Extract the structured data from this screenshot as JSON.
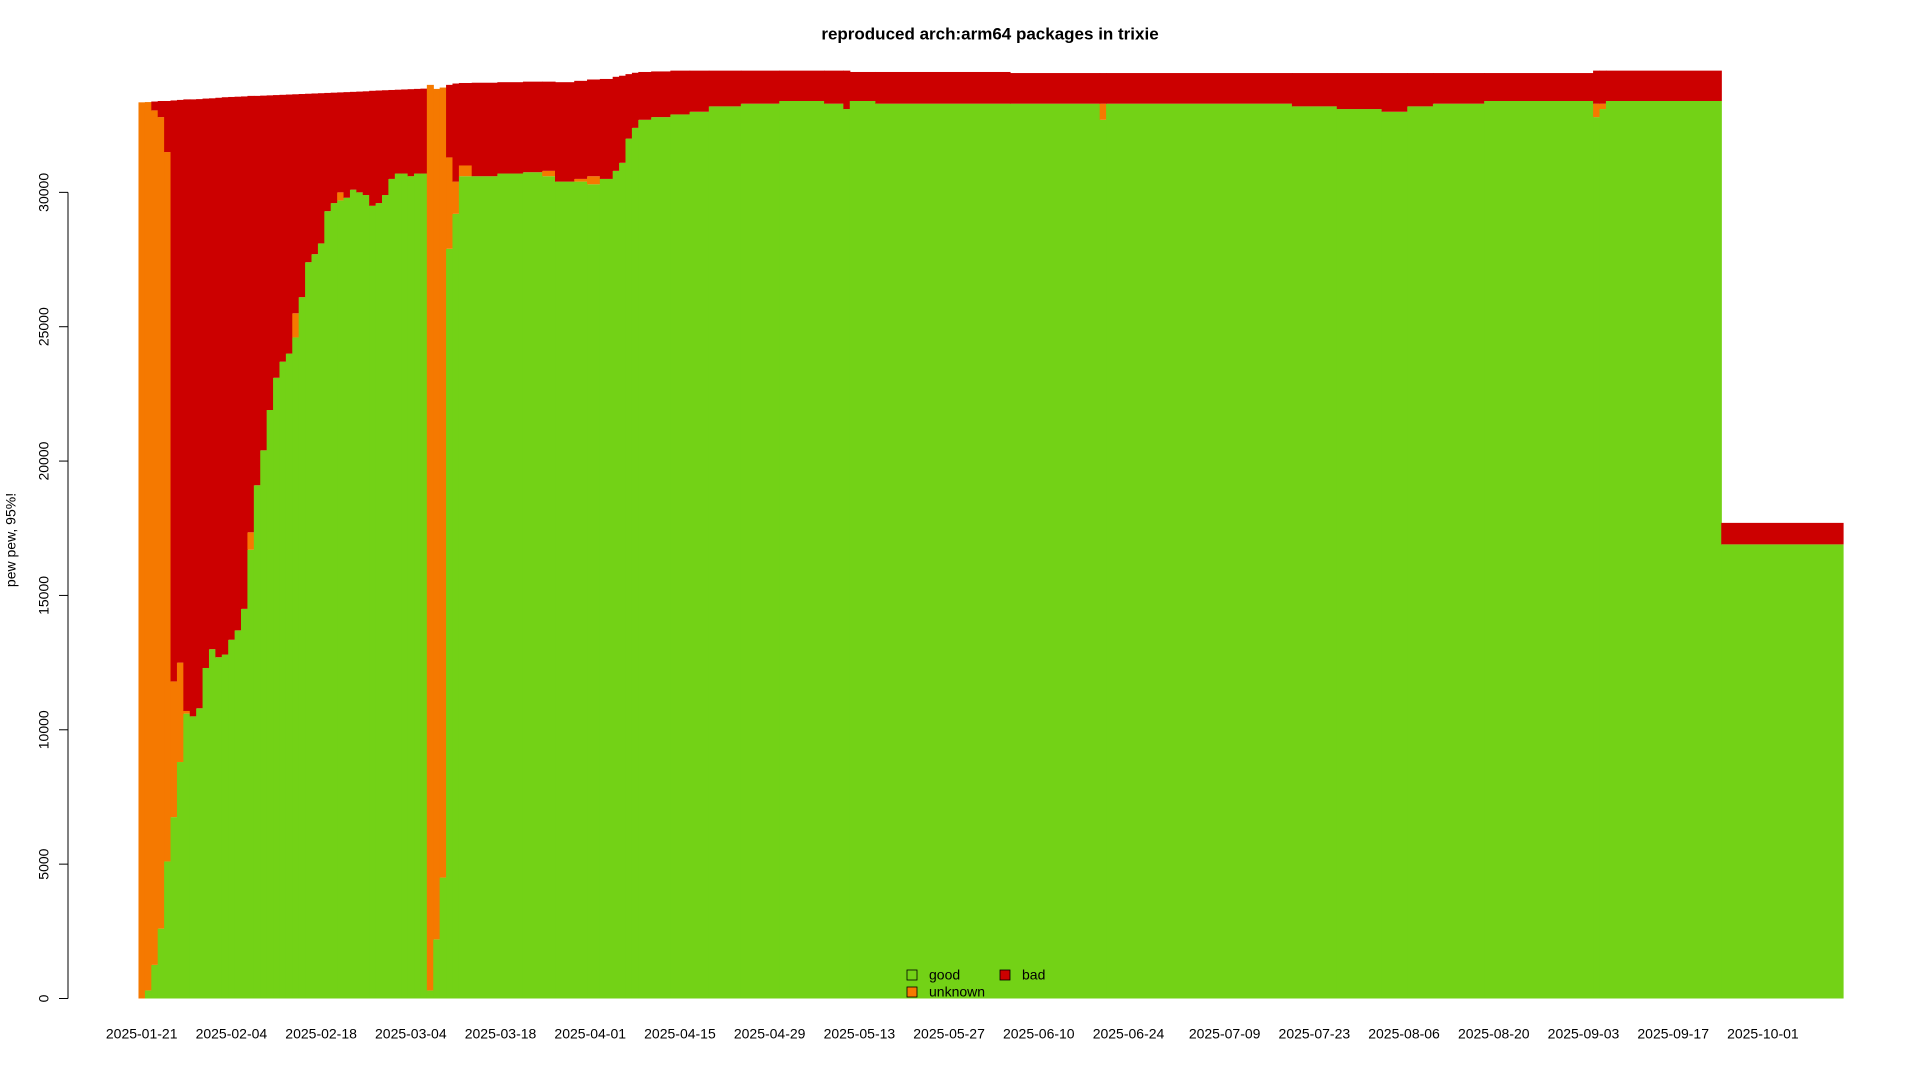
{
  "chart_data": {
    "type": "stacked_bar",
    "title": "reproduced arch:arm64 packages in trixie",
    "y_label": "pew pew, 95%!",
    "x": [
      "2025-01-21",
      "2025-01-22",
      "2025-01-23",
      "2025-01-24",
      "2025-01-25",
      "2025-01-26",
      "2025-01-27",
      "2025-01-28",
      "2025-01-29",
      "2025-01-30",
      "2025-01-31",
      "2025-02-01",
      "2025-02-02",
      "2025-02-03",
      "2025-02-04",
      "2025-02-05",
      "2025-02-06",
      "2025-02-07",
      "2025-02-08",
      "2025-02-09",
      "2025-02-10",
      "2025-02-11",
      "2025-02-12",
      "2025-02-13",
      "2025-02-14",
      "2025-02-15",
      "2025-02-16",
      "2025-02-17",
      "2025-02-18",
      "2025-02-19",
      "2025-02-20",
      "2025-02-21",
      "2025-02-22",
      "2025-02-23",
      "2025-02-24",
      "2025-02-25",
      "2025-02-26",
      "2025-02-27",
      "2025-02-28",
      "2025-03-01",
      "2025-03-02",
      "2025-03-03",
      "2025-03-04",
      "2025-03-05",
      "2025-03-06",
      "2025-03-07",
      "2025-03-08",
      "2025-03-09",
      "2025-03-10",
      "2025-03-11",
      "2025-03-12",
      "2025-03-14",
      "2025-03-18",
      "2025-03-22",
      "2025-03-25",
      "2025-03-27",
      "2025-03-30",
      "2025-04-01",
      "2025-04-03",
      "2025-04-05",
      "2025-04-06",
      "2025-04-07",
      "2025-04-08",
      "2025-04-09",
      "2025-04-11",
      "2025-04-14",
      "2025-04-17",
      "2025-04-20",
      "2025-04-25",
      "2025-05-01",
      "2025-05-08",
      "2025-05-11",
      "2025-05-12",
      "2025-05-16",
      "2025-06-06",
      "2025-06-20",
      "2025-06-21",
      "2025-07-20",
      "2025-07-27",
      "2025-08-03",
      "2025-08-07",
      "2025-08-11",
      "2025-08-19",
      "2025-09-05",
      "2025-09-06",
      "2025-09-07",
      "2025-09-25"
    ],
    "series": [
      {
        "name": "good",
        "color": "#73d216",
        "values": [
          0,
          300,
          1250,
          2600,
          5100,
          6750,
          8800,
          10600,
          10500,
          10800,
          12300,
          13000,
          12700,
          12800,
          13350,
          13700,
          14500,
          16700,
          19100,
          20400,
          21900,
          23100,
          23700,
          24000,
          24600,
          26100,
          27400,
          27700,
          28100,
          29300,
          29600,
          29700,
          29800,
          30100,
          30000,
          29900,
          29500,
          29600,
          29900,
          30500,
          30700,
          30700,
          30600,
          30700,
          30700,
          300,
          2200,
          4500,
          27900,
          29200,
          30600,
          30600,
          30700,
          30750,
          30600,
          30400,
          30400,
          30300,
          30500,
          30800,
          31100,
          32000,
          32400,
          32700,
          32800,
          32900,
          33000,
          33200,
          33300,
          33400,
          33300,
          33100,
          33400,
          33300,
          33300,
          32700,
          33300,
          33200,
          33100,
          33000,
          33200,
          33300,
          33400,
          32800,
          33100,
          33400,
          16900
        ]
      },
      {
        "name": "unknown",
        "color": "#f57900",
        "values": [
          33350,
          33060,
          31800,
          30200,
          26400,
          5050,
          3700,
          100,
          0,
          0,
          0,
          0,
          0,
          0,
          0,
          0,
          0,
          650,
          0,
          0,
          0,
          0,
          0,
          0,
          900,
          0,
          0,
          0,
          0,
          0,
          0,
          300,
          0,
          0,
          0,
          0,
          0,
          0,
          0,
          0,
          0,
          0,
          0,
          0,
          0,
          33700,
          31650,
          29400,
          3400,
          1200,
          400,
          0,
          0,
          0,
          200,
          0,
          100,
          300,
          0,
          0,
          0,
          0,
          0,
          0,
          0,
          0,
          0,
          0,
          0,
          0,
          0,
          0,
          0,
          0,
          0,
          600,
          0,
          0,
          0,
          0,
          0,
          0,
          0,
          500,
          200,
          0,
          0
        ]
      },
      {
        "name": "bad",
        "color": "#cc0000",
        "values": [
          0,
          0,
          330,
          600,
          1900,
          21620,
          20940,
          22760,
          22960,
          22670,
          21190,
          20500,
          20820,
          20740,
          20200,
          19860,
          19070,
          16240,
          14490,
          13200,
          11710,
          10520,
          9930,
          9640,
          8150,
          7560,
          6270,
          5980,
          5590,
          4400,
          4110,
          3720,
          3930,
          3640,
          3750,
          3860,
          4280,
          4190,
          3900,
          3310,
          3120,
          3130,
          3240,
          3150,
          3160,
          0,
          0,
          0,
          2700,
          3650,
          3070,
          3480,
          3400,
          3370,
          3320,
          3700,
          3650,
          3600,
          3720,
          3500,
          3240,
          2400,
          2050,
          1780,
          1700,
          1630,
          1530,
          1330,
          1230,
          1130,
          1230,
          1430,
          1080,
          1180,
          1140,
          1140,
          1140,
          1240,
          1340,
          1440,
          1240,
          1140,
          1040,
          1230,
          1230,
          1130,
          800
        ]
      }
    ],
    "xlim": [
      "2025-01-10",
      "2025-10-14"
    ],
    "xticks": [
      "2025-01-21",
      "2025-02-04",
      "2025-02-18",
      "2025-03-04",
      "2025-03-18",
      "2025-04-01",
      "2025-04-15",
      "2025-04-29",
      "2025-05-13",
      "2025-05-27",
      "2025-06-10",
      "2025-06-24",
      "2025-07-09",
      "2025-07-23",
      "2025-08-06",
      "2025-08-20",
      "2025-09-03",
      "2025-09-17",
      "2025-10-01"
    ],
    "ylim": [
      0,
      35000
    ],
    "yticks": [
      0,
      5000,
      10000,
      15000,
      20000,
      25000,
      30000
    ],
    "legend": "bottom"
  }
}
